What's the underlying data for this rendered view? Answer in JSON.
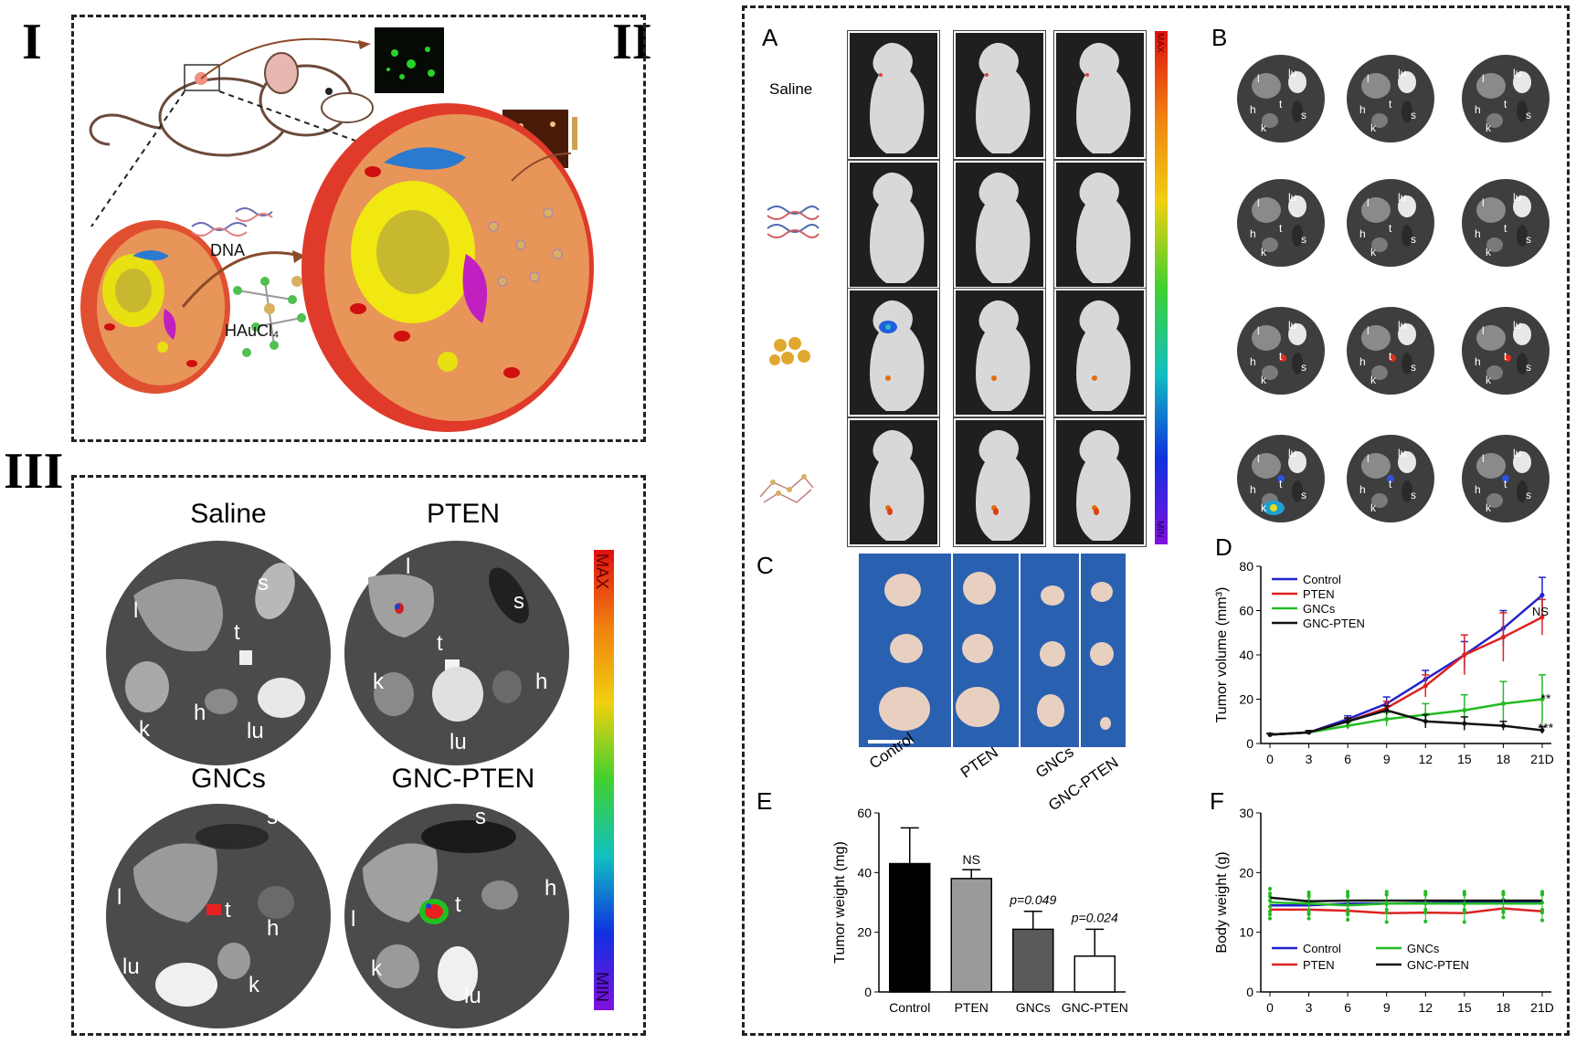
{
  "roman": {
    "I": "I",
    "II": "II",
    "III": "III"
  },
  "panel_I": {
    "dna": "DNA",
    "gold": "HAuCl₄"
  },
  "panel_II": {
    "letters": {
      "A": "A",
      "B": "B",
      "C": "C",
      "D": "D",
      "E": "E",
      "F": "F"
    },
    "row_saline": "Saline",
    "scale": {
      "max": "MAX",
      "min": "MIN"
    },
    "organ_labels": [
      "l",
      "lu",
      "h",
      "t",
      "k",
      "s"
    ],
    "tumor_groups": [
      "Control",
      "PTEN",
      "GNCs",
      "GNC-PTEN"
    ]
  },
  "panel_III": {
    "titles": [
      "Saline",
      "PTEN",
      "GNCs",
      "GNC-PTEN"
    ],
    "scale": {
      "max": "MAX",
      "min": "MIN"
    },
    "organs": {
      "l": "l",
      "s": "s",
      "t": "t",
      "k": "k",
      "h": "h",
      "lu": "lu"
    }
  },
  "chart_data": [
    {
      "id": "D",
      "type": "line",
      "ylabel": "Tumor volume (mm³)",
      "xlabel": "",
      "x": [
        0,
        3,
        6,
        9,
        12,
        15,
        18,
        21
      ],
      "x_tick_labels": [
        "0",
        "3",
        "6",
        "9",
        "12",
        "15",
        "18",
        "21D"
      ],
      "ylim": [
        0,
        80
      ],
      "y_ticks": [
        0,
        20,
        40,
        60,
        80
      ],
      "series": [
        {
          "name": "Control",
          "color": "#2222cc",
          "values": [
            4,
            5,
            11,
            18,
            29,
            40,
            52,
            67
          ],
          "err": [
            0.5,
            0.8,
            1.5,
            3,
            4,
            6,
            8,
            8
          ]
        },
        {
          "name": "PTEN",
          "color": "#dd2222",
          "values": [
            4,
            5,
            10,
            16,
            26,
            40,
            48,
            57
          ],
          "err": [
            0.5,
            0.8,
            1.5,
            3,
            5,
            9,
            11,
            8
          ]
        },
        {
          "name": "GNCs",
          "color": "#22bb22",
          "values": [
            4,
            5,
            8,
            11,
            13,
            15,
            18,
            20
          ],
          "err": [
            0.5,
            0.8,
            1.5,
            3,
            5,
            7,
            10,
            11
          ]
        },
        {
          "name": "GNC-PTEN",
          "color": "#111111",
          "values": [
            4,
            5,
            10,
            15,
            10,
            9,
            8,
            6
          ],
          "err": [
            0.5,
            0.8,
            1.5,
            2,
            3,
            3,
            2,
            1.5
          ]
        }
      ],
      "annotations": [
        "NS",
        "**",
        "***"
      ],
      "legend": "top-left"
    },
    {
      "id": "E",
      "type": "bar",
      "ylabel": "Tumor weight (mg)",
      "categories": [
        "Control",
        "PTEN",
        "GNCs",
        "GNC-PTEN"
      ],
      "values": [
        43,
        38,
        21,
        12
      ],
      "err": [
        12,
        3,
        6,
        9
      ],
      "colors": [
        "#000000",
        "#9a9a9a",
        "#5a5a5a",
        "#ffffff"
      ],
      "ylim": [
        0,
        60
      ],
      "y_ticks": [
        0,
        20,
        40,
        60
      ],
      "annotations": [
        "NS",
        "p=0.049",
        "p=0.024"
      ]
    },
    {
      "id": "F",
      "type": "line",
      "ylabel": "Body weight (g)",
      "x": [
        0,
        3,
        6,
        9,
        12,
        15,
        18,
        21
      ],
      "x_tick_labels": [
        "0",
        "3",
        "6",
        "9",
        "12",
        "15",
        "18",
        "21D"
      ],
      "ylim": [
        0,
        30
      ],
      "y_ticks": [
        0,
        10,
        20,
        30
      ],
      "series": [
        {
          "name": "Control",
          "color": "#2222cc",
          "values": [
            14.5,
            14.5,
            14.8,
            14.8,
            14.9,
            15,
            15,
            15
          ]
        },
        {
          "name": "PTEN",
          "color": "#dd2222",
          "values": [
            13.8,
            13.8,
            13.6,
            13.2,
            13.3,
            13.2,
            14,
            13.5
          ]
        },
        {
          "name": "GNCs",
          "color": "#22bb22",
          "values": [
            15,
            14.8,
            14.5,
            14.8,
            14.8,
            14.8,
            14.8,
            14.8
          ]
        },
        {
          "name": "GNC-PTEN",
          "color": "#111111",
          "values": [
            15.8,
            15.2,
            15.3,
            15.3,
            15.3,
            15.3,
            15.3,
            15.3
          ]
        }
      ],
      "err": 1.5,
      "legend": "bottom-left"
    }
  ]
}
